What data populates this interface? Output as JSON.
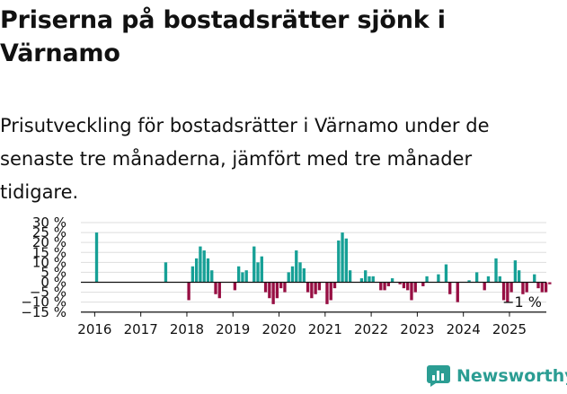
{
  "title": "Priserna på bostadsrätter sjönk i Värnamo",
  "subtitle": "Prisutveckling för bostadsrätter i Värnamo under de senaste tre månaderna, jämfört med tre månader tidigare.",
  "brand": {
    "name": "Newsworthy",
    "logo_icon": "bar-chart-icon"
  },
  "colors": {
    "positive": "#16a096",
    "negative": "#970f43",
    "grid": "#dddddd",
    "axis": "#111111",
    "brand": "#2b9d93"
  },
  "chart_data": {
    "type": "bar",
    "title": "",
    "xlabel": "",
    "ylabel": "",
    "ylim": [
      -15,
      30
    ],
    "yticks": [
      30,
      25,
      20,
      15,
      10,
      5,
      0,
      -5,
      -10,
      -15
    ],
    "ytick_labels": [
      "30 %",
      "25 %",
      "20 %",
      "15 %",
      "10 %",
      "5 %",
      "0 %",
      "−5 %",
      "−10 %",
      "−15 %"
    ],
    "xticks": [
      "2016",
      "2017",
      "2018",
      "2019",
      "2020",
      "2021",
      "2022",
      "2023",
      "2024",
      "2025"
    ],
    "start": "2016-01",
    "x_start": 2015.7,
    "x_end": 2025.8,
    "grid": true,
    "annotation": "−1 %",
    "values": [
      25,
      0,
      0,
      0,
      0,
      0,
      0,
      0,
      0,
      0,
      0,
      0,
      0,
      0,
      0,
      0,
      0,
      0,
      10,
      0,
      0,
      0,
      0,
      0,
      -9,
      8,
      12,
      18,
      16,
      12,
      6,
      -6,
      -8,
      0,
      0,
      0,
      -4,
      8,
      5,
      6,
      0,
      18,
      10,
      13,
      -5,
      -8,
      -11,
      -8,
      -3,
      -5,
      5,
      8,
      16,
      10,
      7,
      -5,
      -8,
      -6,
      -4,
      0,
      -11,
      -9,
      -3,
      21,
      25,
      22,
      6,
      0,
      0,
      2,
      6,
      3,
      3,
      0,
      -4,
      -4,
      -2,
      2,
      0,
      -1,
      -3,
      -4,
      -9,
      -5,
      0,
      -2,
      3,
      0,
      0,
      4,
      0,
      9,
      -6,
      0,
      -10,
      0,
      0,
      1,
      0,
      5,
      0,
      -4,
      3,
      0,
      12,
      3,
      -9,
      -10,
      -5,
      11,
      6,
      -6,
      -5,
      0,
      4,
      -3,
      -5,
      -5,
      -1,
      0
    ]
  }
}
